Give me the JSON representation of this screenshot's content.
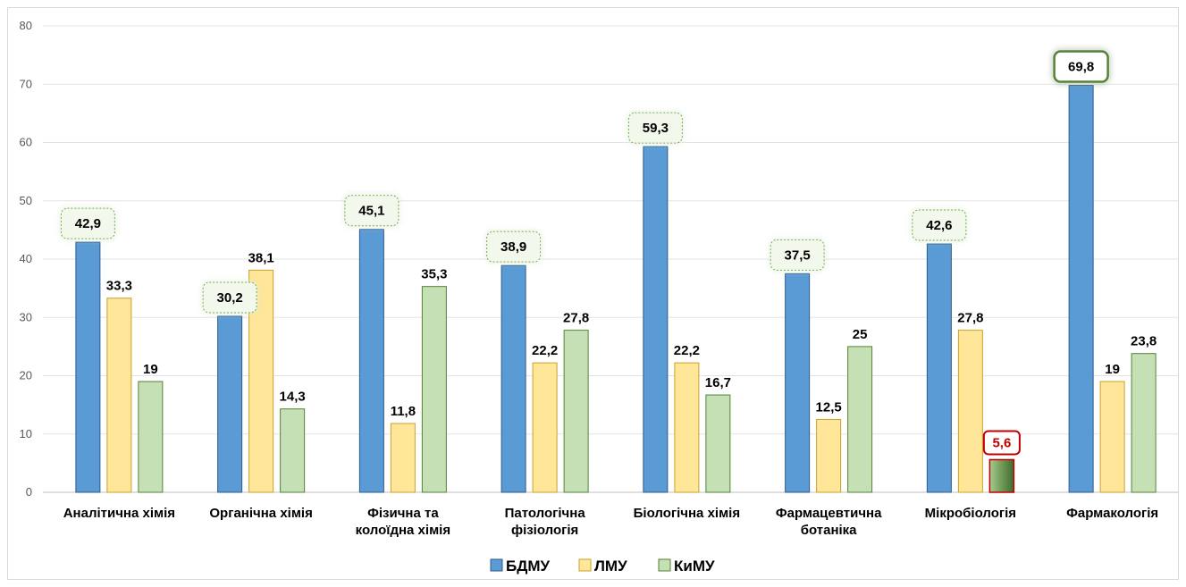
{
  "chart_data": {
    "type": "bar",
    "title": "",
    "xlabel": "",
    "ylabel": "",
    "ylim": [
      0,
      80
    ],
    "yticks": [
      0,
      10,
      20,
      30,
      40,
      50,
      60,
      70,
      80
    ],
    "grid": true,
    "legend_position": "bottom",
    "categories": [
      [
        "Аналітична  хімія"
      ],
      [
        "Органічна  хімія"
      ],
      [
        "Фізична та",
        "колоїдна  хімія"
      ],
      [
        "Патологічна",
        "фізіологія"
      ],
      [
        "Біологічна  хімія"
      ],
      [
        "Фармацевтична",
        "ботаніка"
      ],
      [
        "Мікробіологія"
      ],
      [
        "Фармакологія"
      ]
    ],
    "series": [
      {
        "name": "БДМУ",
        "color": "#5b9bd5",
        "stroke": "#2e5b8a",
        "values": [
          42.9,
          30.2,
          45.1,
          38.9,
          59.3,
          37.5,
          42.6,
          69.8
        ],
        "labels": [
          "42,9",
          "30,2",
          "45,1",
          "38,9",
          "59,3",
          "37,5",
          "42,6",
          "69,8"
        ]
      },
      {
        "name": "ЛМУ",
        "color": "#ffe699",
        "stroke": "#c9a227",
        "values": [
          33.3,
          38.1,
          11.8,
          22.2,
          22.2,
          12.5,
          27.8,
          19
        ],
        "labels": [
          "33,3",
          "38,1",
          "11,8",
          "22,2",
          "22,2",
          "12,5",
          "27,8",
          "19"
        ]
      },
      {
        "name": "КиМУ",
        "color": "#c5e0b4",
        "stroke": "#548235",
        "values": [
          19,
          14.3,
          35.3,
          27.8,
          16.7,
          25,
          5.6,
          23.8
        ],
        "labels": [
          "19",
          "14,3",
          "35,3",
          "27,8",
          "16,7",
          "25",
          "5,6",
          "23,8"
        ]
      }
    ],
    "highlights": {
      "max_color": "#70ad47",
      "min_color": "#c00000"
    }
  }
}
